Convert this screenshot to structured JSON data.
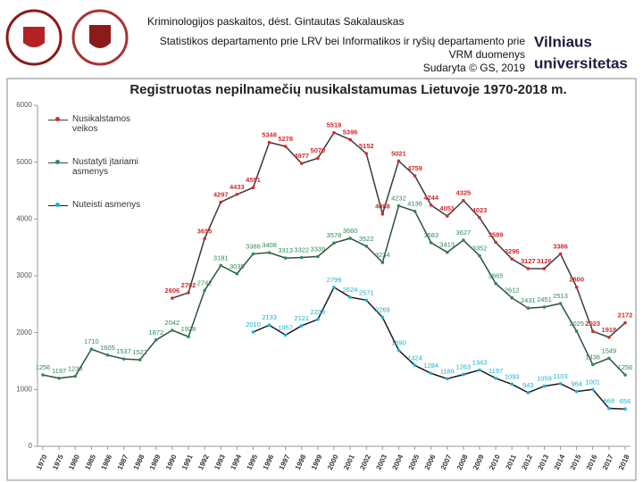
{
  "header": {
    "lines": [
      "Kriminologijos paskaitos, dėst. Gintautas Sakalauskas",
      "Statistikos departamento prie LRV bei Informatikos ir ryšių departamento prie",
      "VRM duomenys",
      "Sudaryta © GS, 2019"
    ],
    "brand": [
      "Vilniaus",
      "universitetas"
    ]
  },
  "chart_data": {
    "type": "line",
    "title": "Registruotas nepilnamečių nusikalstamumas Lietuvoje 1970-2018 m.",
    "categories": [
      "1970",
      "1975",
      "1980",
      "1985",
      "1986",
      "1987",
      "1988",
      "1989",
      "1990",
      "1991",
      "1992",
      "1993",
      "1994",
      "1995",
      "1996",
      "1997",
      "1998",
      "1999",
      "2000",
      "2001",
      "2002",
      "2003",
      "2004",
      "2005",
      "2006",
      "2007",
      "2008",
      "2009",
      "2010",
      "2011",
      "2012",
      "2013",
      "2014",
      "2015",
      "2016",
      "2017",
      "2018"
    ],
    "series": [
      {
        "name": "Nusikalstamos veikos",
        "color": "#3a3a3a",
        "label_color": "#d42a2a",
        "values": [
          null,
          null,
          null,
          null,
          null,
          null,
          null,
          null,
          2606,
          2702,
          3655,
          4297,
          4433,
          4551,
          5348,
          5278,
          4977,
          5070,
          5519,
          5396,
          5152,
          4088,
          5021,
          4759,
          4244,
          4051,
          4325,
          4023,
          3589,
          3296,
          3127,
          3126,
          3386,
          2800,
          2023,
          1918,
          2172
        ]
      },
      {
        "name": "Nustatyti įtariami asmenys",
        "color": "#2f4f3f",
        "label_color": "#2e8b57",
        "values": [
          1256,
          1197,
          1233,
          1710,
          1605,
          1537,
          1522,
          1872,
          2042,
          1928,
          2742,
          3181,
          3035,
          3386,
          3408,
          3313,
          3322,
          3339,
          3578,
          3660,
          3522,
          3234,
          4232,
          4136,
          3583,
          3413,
          3627,
          3352,
          2865,
          2612,
          2431,
          2451,
          2513,
          2025,
          1436,
          1549,
          1256
        ]
      },
      {
        "name": "Nuteisti asmenys",
        "color": "#1a1a1a",
        "label_color": "#17b3cf",
        "values": [
          null,
          null,
          null,
          null,
          null,
          null,
          null,
          null,
          null,
          null,
          null,
          null,
          null,
          2010,
          2133,
          1957,
          2121,
          2233,
          2799,
          2624,
          2571,
          2269,
          1690,
          1424,
          1284,
          1189,
          1263,
          1343,
          1197,
          1093,
          943,
          1059,
          1103,
          964,
          1001,
          668,
          656
        ]
      }
    ],
    "ylim": [
      0,
      6000
    ],
    "yticks": [
      0,
      1000,
      2000,
      3000,
      4000,
      5000,
      6000
    ],
    "legend": "upper-left"
  }
}
